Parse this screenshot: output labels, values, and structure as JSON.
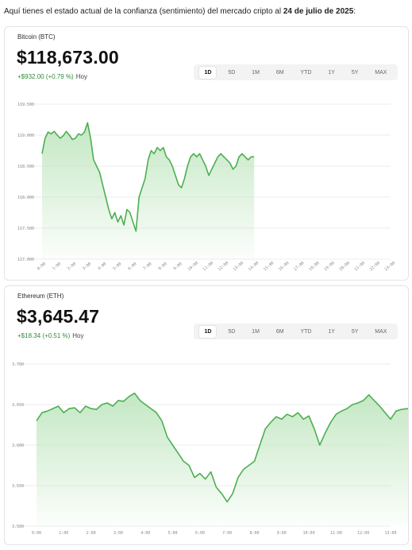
{
  "intro": {
    "prefix": "Aquí tienes el estado actual de la confianza (sentimiento) del mercado cripto al ",
    "date": "24 de julio de 2025",
    "suffix": ":"
  },
  "ranges": [
    "1D",
    "5D",
    "1M",
    "6M",
    "YTD",
    "1Y",
    "5Y",
    "MAX"
  ],
  "active_range": "1D",
  "colors": {
    "line": "#4caf50",
    "fill": "#bde5bd",
    "positive": "#2e8b3a"
  },
  "cards": [
    {
      "name": "Bitcoin (BTC)",
      "price": "$118,673.00",
      "change": "+$932.00 (+0.79 %)",
      "period": "Hoy"
    },
    {
      "name": "Ethereum (ETH)",
      "price": "$3,645.47",
      "change": "+$18.34 (+0.51 %)",
      "period": "Hoy"
    }
  ],
  "chart_data": [
    {
      "type": "area",
      "title": "",
      "y_ticks": [
        "119.500",
        "119.000",
        "118.500",
        "118.000",
        "117.500",
        "117.000"
      ],
      "ylim": [
        117000,
        119500
      ],
      "x_ticks": [
        "0:00",
        "1:00",
        "2:00",
        "3:00",
        "4:00",
        "5:00",
        "6:00",
        "7:00",
        "8:00",
        "9:00",
        "10:00",
        "11:00",
        "12:00",
        "13:00",
        "14:00",
        "15:00",
        "16:00",
        "17:00",
        "18:00",
        "19:00",
        "20:00",
        "21:00",
        "22:00",
        "23:00"
      ],
      "x_hours": [
        0,
        0.2,
        0.4,
        0.6,
        0.8,
        1.0,
        1.2,
        1.4,
        1.6,
        1.8,
        2.0,
        2.2,
        2.4,
        2.6,
        2.8,
        3.0,
        3.2,
        3.4,
        3.6,
        3.8,
        4.0,
        4.2,
        4.4,
        4.6,
        4.8,
        5.0,
        5.2,
        5.4,
        5.6,
        5.8,
        6.0,
        6.2,
        6.4,
        6.6,
        6.8,
        7.0,
        7.2,
        7.4,
        7.6,
        7.8,
        8.0,
        8.2,
        8.4,
        8.6,
        8.8,
        9.0,
        9.2,
        9.4,
        9.6,
        9.8,
        10.0,
        10.2,
        10.4,
        10.6,
        10.8,
        11.0,
        11.2,
        11.4,
        11.6,
        11.8,
        12.0,
        12.2,
        12.4,
        12.6,
        12.8,
        13.0,
        13.2,
        13.4,
        13.6,
        13.8,
        14.0
      ],
      "series": [
        {
          "values": [
            118700,
            118950,
            119050,
            119020,
            119060,
            119000,
            118950,
            118990,
            119060,
            119000,
            118930,
            118950,
            119020,
            119000,
            119050,
            119200,
            118950,
            118600,
            118500,
            118400,
            118200,
            118000,
            117800,
            117650,
            117750,
            117600,
            117700,
            117550,
            117800,
            117750,
            117600,
            117450,
            118000,
            118150,
            118300,
            118600,
            118750,
            118700,
            118800,
            118750,
            118800,
            118650,
            118600,
            118500,
            118350,
            118200,
            118150,
            118300,
            118500,
            118650,
            118700,
            118650,
            118700,
            118600,
            118500,
            118350,
            118450,
            118550,
            118650,
            118700,
            118650,
            118600,
            118550,
            118450,
            118500,
            118650,
            118700,
            118650,
            118600,
            118650,
            118650
          ]
        }
      ]
    },
    {
      "type": "area",
      "title": "",
      "y_ticks": [
        "3.700",
        "3.650",
        "3.600",
        "3.550",
        "3.500"
      ],
      "ylim": [
        3500,
        3700
      ],
      "x_ticks": [
        "0:00",
        "1:00",
        "2:00",
        "3:00",
        "4:00",
        "5:00",
        "6:00",
        "7:00",
        "8:00",
        "9:00",
        "10:00",
        "11:00",
        "12:00",
        "13:00"
      ],
      "x_hours": [
        0,
        0.2,
        0.4,
        0.6,
        0.8,
        1.0,
        1.2,
        1.4,
        1.6,
        1.8,
        2.0,
        2.2,
        2.4,
        2.6,
        2.8,
        3.0,
        3.2,
        3.4,
        3.6,
        3.8,
        4.0,
        4.2,
        4.4,
        4.6,
        4.8,
        5.0,
        5.2,
        5.4,
        5.6,
        5.8,
        6.0,
        6.2,
        6.4,
        6.6,
        6.8,
        7.0,
        7.2,
        7.4,
        7.6,
        7.8,
        8.0,
        8.2,
        8.4,
        8.6,
        8.8,
        9.0,
        9.2,
        9.4,
        9.6,
        9.8,
        10.0,
        10.2,
        10.4,
        10.6,
        10.8,
        11.0,
        11.2,
        11.4,
        11.6,
        11.8,
        12.0,
        12.2,
        12.4,
        12.6,
        12.8,
        13.0,
        13.2,
        13.4,
        13.6,
        13.8,
        14.0
      ],
      "series": [
        {
          "values": [
            3630,
            3640,
            3642,
            3645,
            3648,
            3640,
            3645,
            3646,
            3640,
            3648,
            3645,
            3644,
            3650,
            3652,
            3648,
            3655,
            3654,
            3660,
            3664,
            3655,
            3650,
            3645,
            3640,
            3630,
            3610,
            3600,
            3590,
            3580,
            3575,
            3560,
            3565,
            3558,
            3567,
            3548,
            3540,
            3530,
            3540,
            3560,
            3570,
            3575,
            3580,
            3600,
            3620,
            3628,
            3635,
            3632,
            3638,
            3635,
            3640,
            3632,
            3636,
            3620,
            3600,
            3615,
            3628,
            3638,
            3642,
            3645,
            3650,
            3652,
            3655,
            3662,
            3655,
            3648,
            3640,
            3632,
            3642,
            3644,
            3645,
            3643,
            3646
          ]
        }
      ]
    }
  ]
}
